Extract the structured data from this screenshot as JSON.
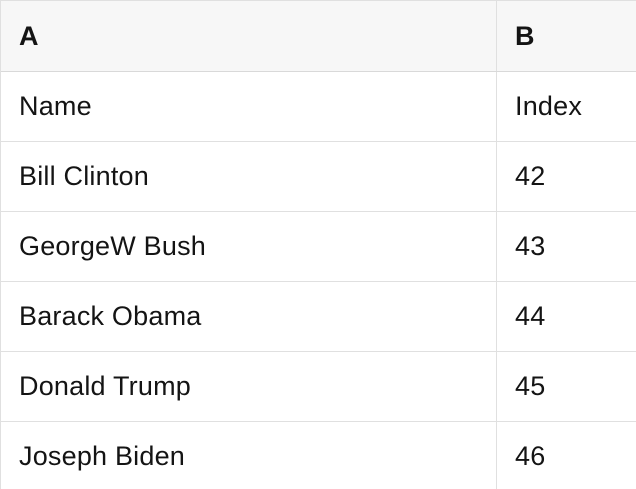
{
  "table": {
    "columns": [
      {
        "label": "A"
      },
      {
        "label": "B"
      }
    ],
    "rows": [
      {
        "a": "Name",
        "b": "Index"
      },
      {
        "a": "Bill Clinton",
        "b": "42"
      },
      {
        "a": "GeorgeW Bush",
        "b": "43"
      },
      {
        "a": "Barack Obama",
        "b": "44"
      },
      {
        "a": "Donald Trump",
        "b": "45"
      },
      {
        "a": "Joseph Biden",
        "b": "46"
      }
    ],
    "colors": {
      "header_bg": "#f7f7f7",
      "border": "#e0e0e0",
      "header_border": "#d9d9d9",
      "text": "#141414"
    }
  }
}
